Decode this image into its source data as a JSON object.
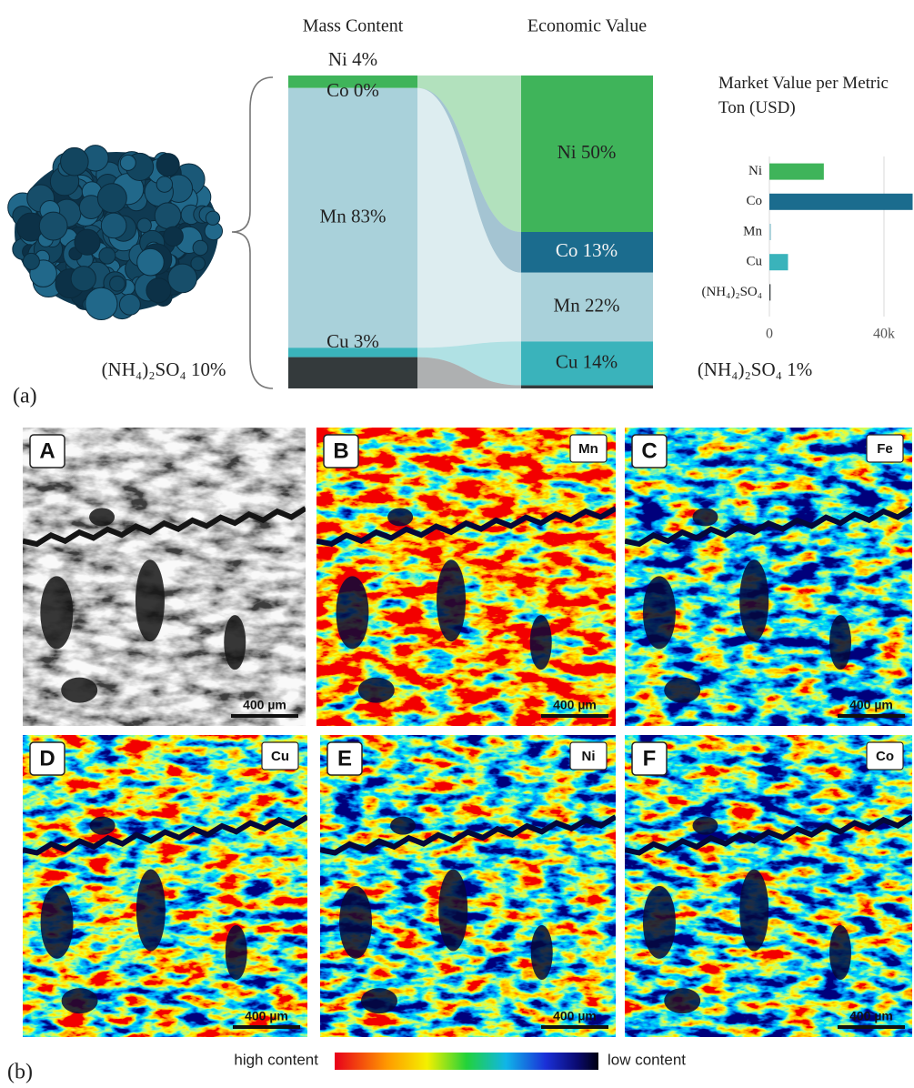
{
  "figure_labels": {
    "a": "(a)",
    "b": "(b)"
  },
  "chart_data": [
    {
      "type": "sankey",
      "series": [
        {
          "name": "Mass Content",
          "values": [
            4,
            0,
            83,
            3,
            10
          ],
          "value_labels": [
            "Ni 4%",
            "Co 0%",
            "Mn 83%",
            "Cu 3%",
            "(NH₄)₂SO₄ 10%"
          ]
        },
        {
          "name": "Economic Value",
          "values": [
            50,
            13,
            22,
            14,
            1
          ],
          "value_labels": [
            "Ni 50%",
            "Co 13%",
            "Mn 22%",
            "Cu 14%",
            "(NH₄)₂SO₄ 1%"
          ]
        }
      ],
      "colors": [
        "#3fb45a",
        "#1b6c8e",
        "#a9d1da",
        "#3ab3bb",
        "#343a3c"
      ]
    },
    {
      "type": "bar",
      "orientation": "horizontal",
      "title": "Market Value per Metric Ton (USD)",
      "categories": [
        "Ni",
        "Co",
        "Mn",
        "Cu",
        "(NH₄)₂SO₄"
      ],
      "values": [
        19000,
        50000,
        600,
        6500,
        400
      ],
      "colors": [
        "#3fb45a",
        "#1b6c8e",
        "#a9d1da",
        "#3ab3bb",
        "#343a3c"
      ],
      "xlim": [
        0,
        50000
      ],
      "xticks": [
        0,
        {
          "value": 40000,
          "label": "40k"
        }
      ],
      "grid": true
    }
  ],
  "maps": [
    {
      "letter": "A"
    },
    {
      "letter": "B",
      "element": "Mn"
    },
    {
      "letter": "C",
      "element": "Fe"
    },
    {
      "letter": "D",
      "element": "Cu"
    },
    {
      "letter": "E",
      "element": "Ni"
    },
    {
      "letter": "F",
      "element": "Co"
    }
  ],
  "scale_bar": "400 µm",
  "colorbar": {
    "high": "high content",
    "low": "low content"
  }
}
